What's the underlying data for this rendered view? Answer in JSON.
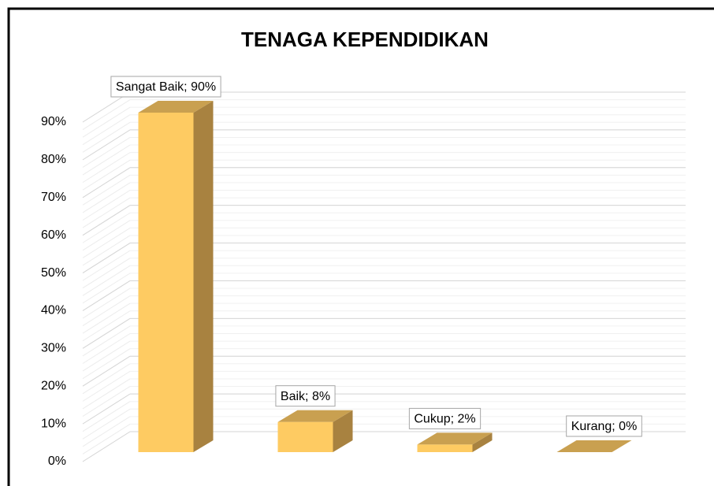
{
  "chart_data": {
    "type": "bar3d",
    "title": "TENAGA KEPENDIDIKAN",
    "values": [
      90,
      8,
      2,
      0
    ],
    "value_labels": [
      "Sangat Baik; 90%",
      "Baik; 8%",
      "Cukup; 2%",
      "Kurang; 0%"
    ],
    "color": "#fecb62",
    "ylim": [
      0,
      90
    ],
    "yticks": [
      {
        "value": 0,
        "label": "0%"
      },
      {
        "value": 10,
        "label": "10%"
      },
      {
        "value": 20,
        "label": "20%"
      },
      {
        "value": 30,
        "label": "30%"
      },
      {
        "value": 40,
        "label": "40%"
      },
      {
        "value": 50,
        "label": "50%"
      },
      {
        "value": 60,
        "label": "60%"
      },
      {
        "value": 70,
        "label": "70%"
      },
      {
        "value": 80,
        "label": "80%"
      },
      {
        "value": 90,
        "label": "90%"
      }
    ],
    "grid": true
  }
}
